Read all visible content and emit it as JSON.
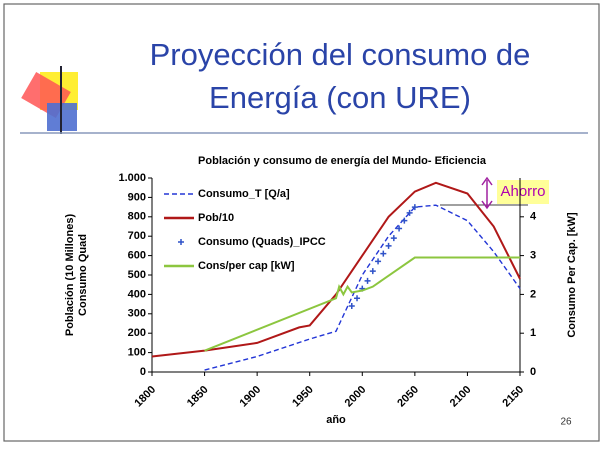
{
  "slide": {
    "title": [
      "Proyección del consumo de",
      "Energía (con URE)"
    ],
    "number": "26"
  },
  "chart_data": {
    "type": "line",
    "title": "Población y consumo de energía del Mundo- Eficiencia",
    "ylabel": [
      "Población (10 Millones)",
      "Consumo Quad"
    ],
    "y2label": "Consumo Per Cap. [kW]",
    "xlabel": "año",
    "annotation": "Ahorro",
    "xlim": [
      1800,
      2150
    ],
    "xticks": [
      1800,
      1850,
      1900,
      1950,
      2000,
      2050,
      2100,
      2150
    ],
    "ylim": [
      0,
      1000
    ],
    "yticks": [
      0,
      100,
      200,
      300,
      400,
      500,
      600,
      700,
      800,
      900,
      {
        "value": 1000,
        "label": "1.000"
      }
    ],
    "y2lim": [
      0,
      5
    ],
    "y2ticks": [
      0,
      1,
      2,
      3,
      4
    ],
    "legend": "upper left",
    "series": [
      {
        "name": "Consumo_T [Q/a]",
        "type": "line",
        "dashed": true,
        "color": "#2336d6",
        "x": [
          1850,
          1900,
          1950,
          1975,
          2000,
          2025,
          2050,
          2070,
          2100,
          2125,
          2150
        ],
        "values": [
          10,
          80,
          170,
          210,
          500,
          700,
          850,
          860,
          780,
          620,
          430
        ]
      },
      {
        "name": "Pob/10",
        "type": "line",
        "dashed": false,
        "color": "#b01818",
        "x": [
          1800,
          1850,
          1900,
          1940,
          1950,
          1975,
          2000,
          2025,
          2050,
          2070,
          2100,
          2125,
          2150
        ],
        "values": [
          80,
          110,
          150,
          230,
          240,
          400,
          600,
          800,
          930,
          975,
          920,
          750,
          480
        ]
      },
      {
        "name": "Consumo (Quads)_IPCC",
        "type": "scatter",
        "dashed": false,
        "color": "#2f52c8",
        "x": [
          1990,
          1995,
          2000,
          2005,
          2010,
          2015,
          2020,
          2025,
          2030,
          2035,
          2040,
          2045,
          2050
        ],
        "values": [
          340,
          380,
          430,
          470,
          520,
          570,
          610,
          650,
          690,
          740,
          780,
          820,
          850
        ]
      },
      {
        "name": "Cons/per cap [kW]",
        "type": "line",
        "dashed": false,
        "color": "#8cc63f",
        "axis": "y2",
        "x": [
          1850,
          1975,
          1978,
          1982,
          1986,
          1990,
          2000,
          2010,
          2050,
          2150
        ],
        "values": [
          0.55,
          1.9,
          2.2,
          2.0,
          2.2,
          2.05,
          2.1,
          2.2,
          2.95,
          2.95
        ]
      }
    ]
  }
}
